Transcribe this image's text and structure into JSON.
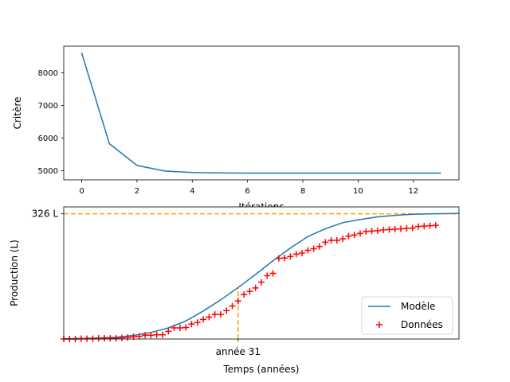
{
  "chart_data": [
    {
      "type": "line",
      "xlabel": "Itérations",
      "ylabel": "Critère",
      "xlim": [
        -0.65,
        13.65
      ],
      "ylim": [
        4720,
        8815
      ],
      "xticks": [
        0,
        2,
        4,
        6,
        8,
        10,
        12
      ],
      "yticks": [
        5000,
        6000,
        7000,
        8000
      ],
      "grid": false,
      "series": [
        {
          "x": [
            0,
            1,
            2,
            3,
            4,
            5,
            6,
            7,
            8,
            9,
            10,
            11,
            12,
            13
          ],
          "y": [
            8610,
            5830,
            5160,
            4990,
            4945,
            4932,
            4928,
            4927,
            4927,
            4927,
            4927,
            4927,
            4927,
            4927
          ],
          "color": "#1f77b4"
        }
      ]
    },
    {
      "type": "scatter",
      "xlabel": "Temps (années)",
      "ylabel": "Production (L)",
      "xlim": [
        1,
        69
      ],
      "ylim": [
        0,
        344
      ],
      "xticks": [
        31
      ],
      "xtick_labels": [
        "année 31"
      ],
      "yticks": [
        326
      ],
      "ytick_labels": [
        "326 L"
      ],
      "grid": false,
      "legend": "lower-right",
      "reference_lines": {
        "horizontal_y": 326,
        "vertical_x": 31,
        "color": "#ffa500",
        "style": "dashed"
      },
      "series": [
        {
          "name": "Modèle",
          "kind": "curve",
          "color": "#1f77b4",
          "x": [
            1,
            4,
            7,
            10,
            13,
            16,
            19,
            22,
            25,
            28,
            31,
            34,
            37,
            40,
            43,
            46,
            49,
            52,
            55,
            58,
            61,
            64,
            67,
            69
          ],
          "y": [
            0.7,
            1.2,
            2.5,
            4.7,
            9.3,
            17,
            29,
            47,
            73,
            102,
            134,
            168,
            204,
            237,
            267,
            287,
            303,
            311,
            318,
            322,
            325,
            326,
            326.5,
            327
          ]
        },
        {
          "name": "Données",
          "kind": "marker",
          "marker": "+",
          "color": "#ff0000",
          "x": [
            1,
            2,
            3,
            4,
            5,
            6,
            7,
            8,
            9,
            10,
            11,
            12,
            13,
            14,
            15,
            16,
            17,
            18,
            19,
            20,
            21,
            22,
            23,
            24,
            25,
            26,
            27,
            28,
            29,
            30,
            31,
            32,
            33,
            34,
            35,
            36,
            37,
            38,
            39,
            40,
            41,
            42,
            43,
            44,
            45,
            46,
            47,
            48,
            49,
            50,
            51,
            52,
            53,
            54,
            55,
            56,
            57,
            58,
            59,
            60,
            61,
            62,
            63,
            64,
            65
          ],
          "y": [
            0,
            0,
            0,
            1,
            1,
            1,
            2,
            2,
            2,
            2,
            3,
            4,
            6,
            7,
            10,
            10,
            11,
            11,
            20,
            29,
            29,
            30,
            39,
            43,
            51,
            57,
            64,
            64,
            74,
            86,
            99,
            116,
            124,
            133,
            148,
            165,
            171,
            210,
            211,
            215,
            221,
            224,
            231,
            235,
            241,
            252,
            257,
            257,
            261,
            268,
            271,
            275,
            280,
            281,
            282,
            284,
            285,
            286,
            287,
            288,
            289,
            293,
            294,
            295,
            296
          ]
        }
      ]
    }
  ]
}
